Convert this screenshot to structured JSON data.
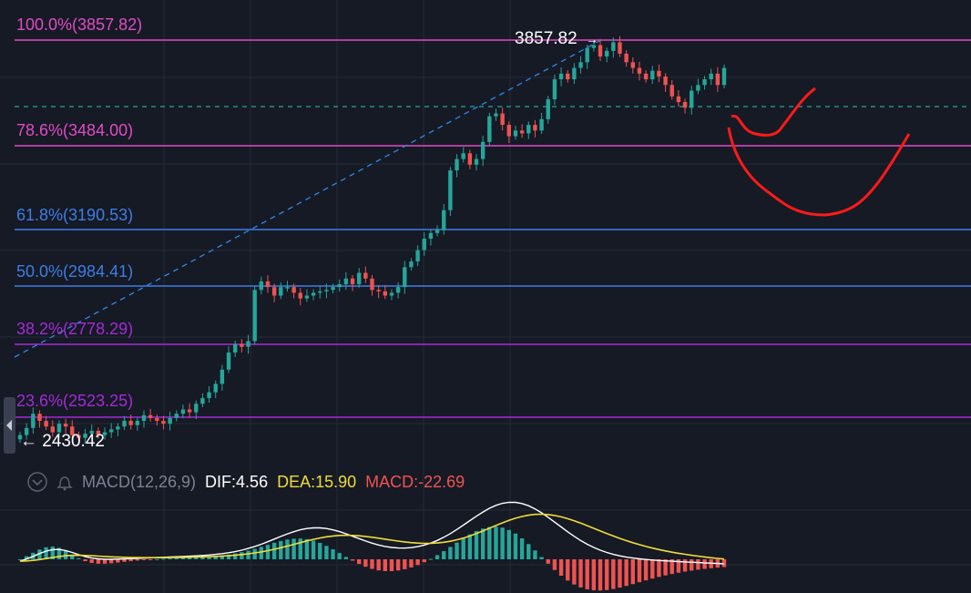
{
  "colors": {
    "background": "#161a25",
    "grid": "#252a37",
    "fib_100": "#e04bc4",
    "fib_786": "#e04bc4",
    "fib_618": "#3d7de6",
    "fib_500": "#3d7de6",
    "fib_382": "#a42ad8",
    "fib_236": "#a42ad8",
    "candle_up": "#26a69a",
    "candle_down": "#ef5350",
    "dif_line": "#ffffff",
    "dea_line": "#f0dc3a",
    "macd_label": "#ef5350",
    "trend_dash": "#2f88e8",
    "current_dash": "#26a69a",
    "drawing": "#ff1a1a"
  },
  "fib_levels": [
    {
      "id": "100",
      "label": "100.0%(3857.82)",
      "price": 3857.82,
      "color": "#e04bc4"
    },
    {
      "id": "786",
      "label": "78.6%(3484.00)",
      "price": 3484.0,
      "color": "#e04bc4"
    },
    {
      "id": "618",
      "label": "61.8%(3190.53)",
      "price": 3190.53,
      "color": "#3d7de6"
    },
    {
      "id": "500",
      "label": "50.0%(2984.41)",
      "price": 2984.41,
      "color": "#3d7de6"
    },
    {
      "id": "382",
      "label": "38.2%(2778.29)",
      "price": 2778.29,
      "color": "#a42ad8"
    },
    {
      "id": "236",
      "label": "23.6%(2523.25)",
      "price": 2523.25,
      "color": "#a42ad8"
    }
  ],
  "annotations": {
    "high_label": "3857.82",
    "high_arrow": "→",
    "low_label": "2430.42",
    "low_arrow": "←"
  },
  "macd": {
    "indicator_label": "MACD(12,26,9)",
    "dif_label": "DIF:4.56",
    "dea_label": "DEA:15.90",
    "macd_label": "MACD:-22.69",
    "icons": [
      "eye-off-icon",
      "alarm-bell-icon"
    ]
  },
  "chart_data": {
    "type": "candlestick",
    "price_range": [
      2430.42,
      3857.82
    ],
    "high": 3857.82,
    "low": 2430.42,
    "closes": [
      2470,
      2495,
      2545,
      2520,
      2500,
      2480,
      2510,
      2500,
      2470,
      2460,
      2475,
      2485,
      2470,
      2480,
      2490,
      2500,
      2520,
      2505,
      2520,
      2540,
      2530,
      2520,
      2510,
      2530,
      2545,
      2560,
      2550,
      2580,
      2600,
      2620,
      2650,
      2700,
      2760,
      2790,
      2780,
      2800,
      2980,
      3010,
      2990,
      2960,
      2990,
      2990,
      2970,
      2950,
      2960,
      2970,
      2975,
      2980,
      2990,
      3000,
      3020,
      3000,
      3040,
      3020,
      2980,
      2975,
      2960,
      2970,
      2990,
      3060,
      3080,
      3120,
      3160,
      3180,
      3190,
      3260,
      3400,
      3440,
      3460,
      3420,
      3440,
      3500,
      3590,
      3600,
      3560,
      3520,
      3540,
      3530,
      3560,
      3540,
      3580,
      3650,
      3720,
      3740,
      3720,
      3760,
      3780,
      3830,
      3840,
      3800,
      3820,
      3850,
      3810,
      3780,
      3760,
      3740,
      3720,
      3750,
      3730,
      3700,
      3660,
      3640,
      3620,
      3680,
      3700,
      3720,
      3740,
      3700,
      3760
    ],
    "macd_histogram_note": "positive bars early and mid, negative bars late",
    "last_values": {
      "DIF": 4.56,
      "DEA": 15.9,
      "MACD": -22.69
    }
  }
}
